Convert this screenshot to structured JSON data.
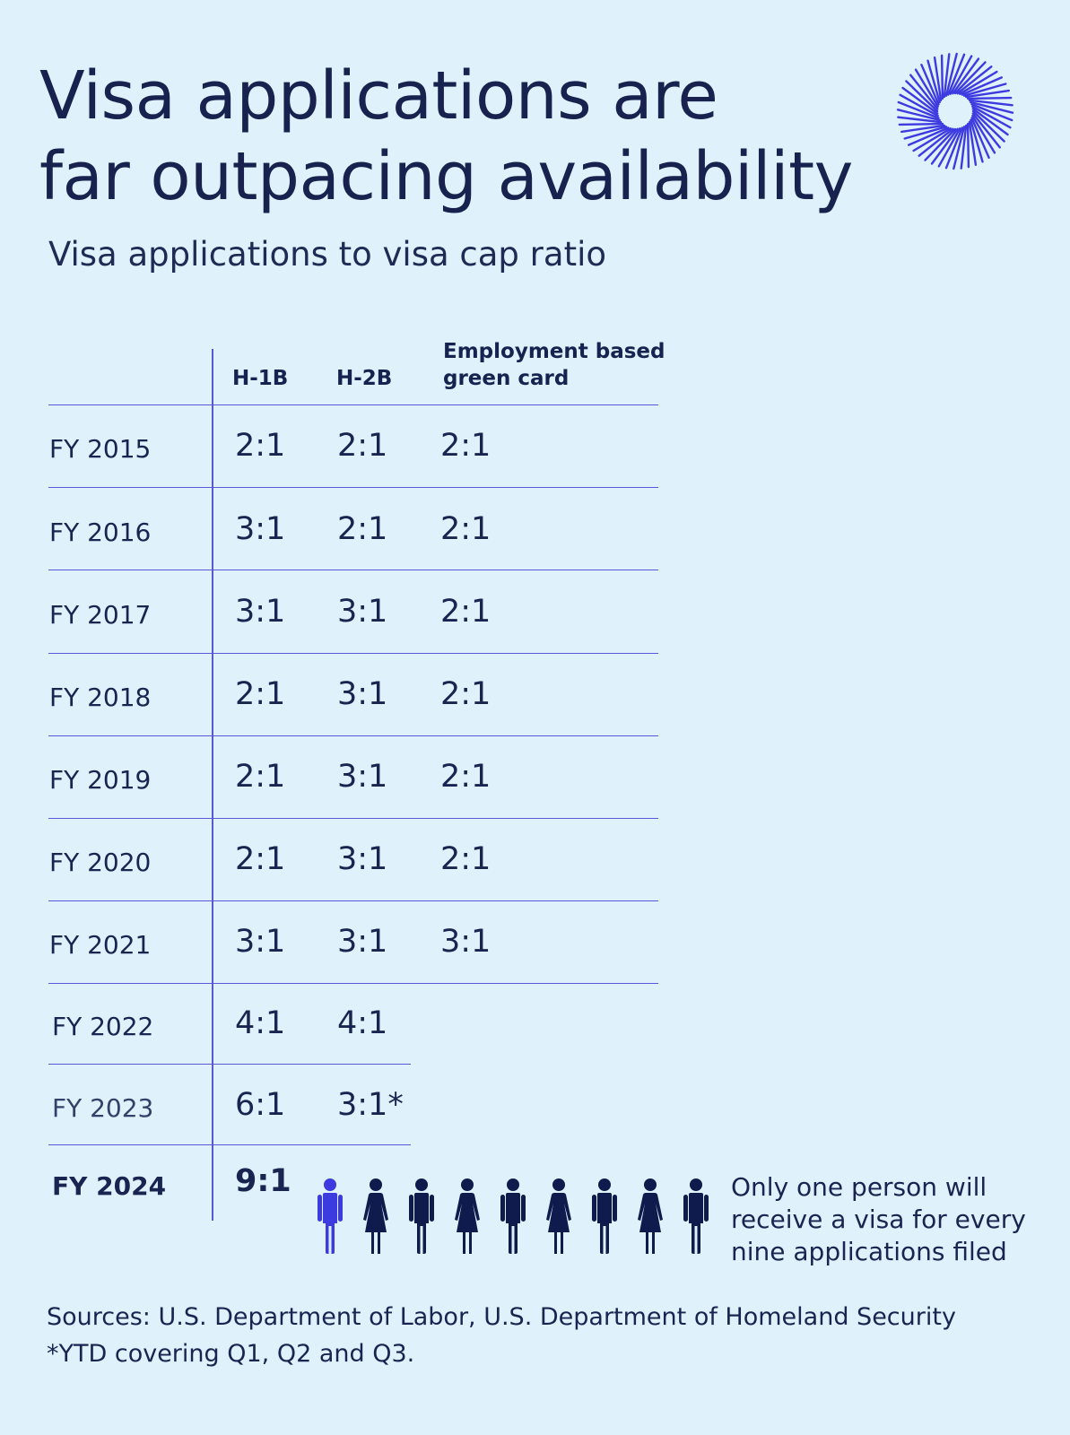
{
  "header": {
    "title_line1": "Visa applications are",
    "title_line2": "far outpacing availability",
    "subtitle": "Visa applications to visa cap ratio",
    "logo": "burst-ring-logo"
  },
  "colors": {
    "background": "#dff1fb",
    "text": "#16224f",
    "accent": "#3d3be0",
    "rule": "#5b57d6",
    "person_dark": "#0f1b4c"
  },
  "chart_data": {
    "type": "table",
    "title": "Visa applications are far outpacing availability",
    "subtitle": "Visa applications to visa cap ratio",
    "columns": [
      "H-1B",
      "H-2B",
      "Employment based green card"
    ],
    "rows": [
      {
        "year": "FY 2015",
        "values": [
          "2:1",
          "2:1",
          "2:1"
        ]
      },
      {
        "year": "FY 2016",
        "values": [
          "3:1",
          "2:1",
          "2:1"
        ]
      },
      {
        "year": "FY 2017",
        "values": [
          "3:1",
          "3:1",
          "2:1"
        ]
      },
      {
        "year": "FY 2018",
        "values": [
          "2:1",
          "3:1",
          "2:1"
        ]
      },
      {
        "year": "FY 2019",
        "values": [
          "2:1",
          "3:1",
          "2:1"
        ]
      },
      {
        "year": "FY 2020",
        "values": [
          "2:1",
          "3:1",
          "2:1"
        ]
      },
      {
        "year": "FY 2021",
        "values": [
          "3:1",
          "3:1",
          "3:1"
        ]
      },
      {
        "year": "FY 2022",
        "values": [
          "4:1",
          "4:1"
        ]
      },
      {
        "year": "FY 2023",
        "values": [
          "6:1",
          "3:1*"
        ]
      },
      {
        "year": "FY 2024",
        "values": [
          "9:1"
        ]
      }
    ],
    "pictogram": {
      "people": [
        "man",
        "woman",
        "man",
        "woman",
        "man",
        "woman",
        "man",
        "woman",
        "man"
      ],
      "highlighted_index": 0,
      "note": "Only one person will receive a visa for every nine applications filed"
    }
  },
  "footer": {
    "sources": "Sources: U.S. Department of Labor, U.S. Department of Homeland Security",
    "footnote": "*YTD covering Q1, Q2 and Q3."
  }
}
